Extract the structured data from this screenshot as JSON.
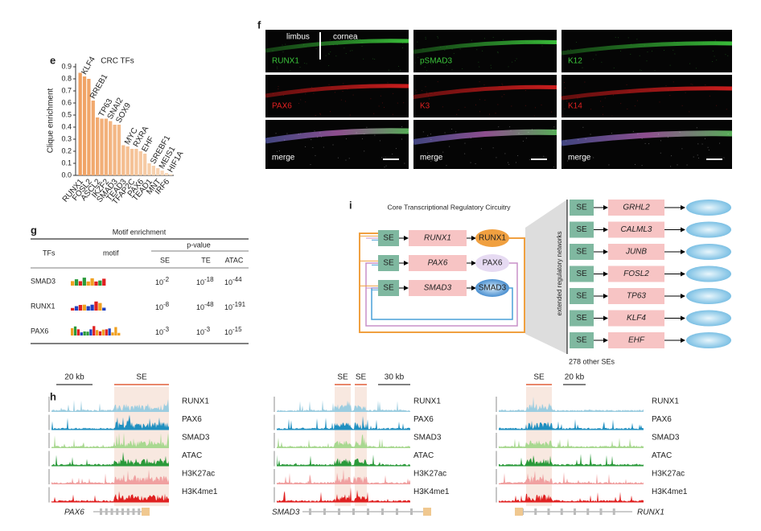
{
  "panel_labels": [
    "e",
    "f",
    "g",
    "h",
    "i"
  ],
  "chart_data": {
    "type": "bar",
    "title": "CRC TFs",
    "y_label": "Clique enrichment",
    "categories": [
      "RUNX1",
      "KLF4",
      "FOSL2",
      "RREB1",
      "ASCL2",
      "TP63",
      "IKZF2",
      "SNAI2",
      "SMAD3",
      "SOX9",
      "TEAD3",
      "MYC",
      "TFAP2C",
      "RXRA",
      "PAX6",
      "EHF",
      "TEAD1",
      "SREBF1",
      "MNT",
      "MEIS1",
      "IRF6",
      "HIF1A"
    ],
    "values": [
      0.85,
      0.82,
      0.8,
      0.62,
      0.48,
      0.47,
      0.47,
      0.45,
      0.42,
      0.42,
      0.25,
      0.24,
      0.22,
      0.22,
      0.2,
      0.18,
      0.1,
      0.08,
      0.06,
      0.04,
      0.02,
      0.01
    ],
    "colors": [
      "#f0a060",
      "#f9dcc0"
    ],
    "ylim": [
      0,
      0.9
    ],
    "yticks": [
      {
        "value": 0,
        "label": "0.0"
      },
      {
        "value": 0.1,
        "label": "0.1"
      },
      {
        "value": 0.2,
        "label": "0.2"
      },
      {
        "value": 0.3,
        "label": "0.3"
      },
      {
        "value": 0.4,
        "label": "0.4"
      },
      {
        "value": 0.5,
        "label": "0.5"
      },
      {
        "value": 0.6,
        "label": "0.6"
      },
      {
        "value": 0.7,
        "label": "0.7"
      },
      {
        "value": 0.8,
        "label": "0.8"
      },
      {
        "value": 0.9,
        "label": "0.9"
      }
    ]
  },
  "microscopy": {
    "annotations": [
      "limbus",
      "cornea"
    ],
    "images": [
      [
        "RUNX1",
        "pSMAD3",
        "K12"
      ],
      [
        "PAX6",
        "K3",
        "K14"
      ],
      [
        "merge",
        "merge",
        "merge"
      ]
    ]
  },
  "motif_table": {
    "title": "Motif enrichment",
    "tfs": "TFs",
    "motif": "motif",
    "pvalue": "p-value",
    "columns": [
      "SE",
      "TE",
      "ATAC"
    ],
    "base": "10",
    "rows": [
      {
        "tf": "SMAD3",
        "exps": [
          "-2",
          "-18",
          "-44"
        ]
      },
      {
        "tf": "RUNX1",
        "exps": [
          "-8",
          "-48",
          "-191"
        ]
      },
      {
        "tf": "PAX6",
        "exps": [
          "-3",
          "-3",
          "-15"
        ]
      }
    ]
  },
  "tracks": {
    "track_names": [
      "RUNX1",
      "PAX6",
      "SMAD3",
      "ATAC",
      "H3K27ac",
      "H3K4me1"
    ],
    "groups": [
      {
        "gene": "PAX6",
        "scale": "20 kb",
        "se": [
          "SE"
        ]
      },
      {
        "gene": "SMAD3",
        "scale": "30 kb",
        "se": [
          "SE",
          "SE"
        ]
      },
      {
        "gene": "RUNX1",
        "scale": "20 kb",
        "se": [
          "SE"
        ]
      }
    ]
  },
  "circuitry": {
    "title": "Core Transcriptional Regulatory Circuitry",
    "core": [
      {
        "se": "SE",
        "gene": "RUNX1",
        "protein": "RUNX1"
      },
      {
        "se": "SE",
        "gene": "PAX6",
        "protein": "PAX6"
      },
      {
        "se": "SE",
        "gene": "SMAD3",
        "protein": "SMAD3"
      }
    ],
    "extended_label": "extended regulatory networks",
    "targets": [
      {
        "se": "SE",
        "gene": "GRHL2"
      },
      {
        "se": "SE",
        "gene": "CALML3"
      },
      {
        "se": "SE",
        "gene": "JUNB"
      },
      {
        "se": "SE",
        "gene": "FOSL2"
      },
      {
        "se": "SE",
        "gene": "TP63"
      },
      {
        "se": "SE",
        "gene": "KLF4"
      },
      {
        "se": "SE",
        "gene": "EHF"
      }
    ],
    "other": "278 other SEs"
  }
}
